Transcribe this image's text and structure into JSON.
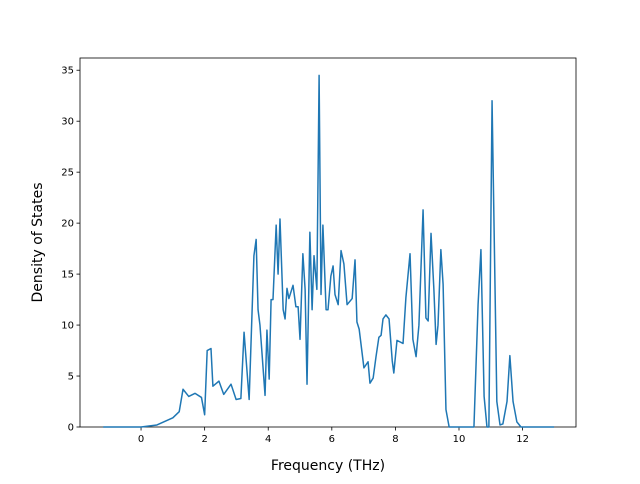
{
  "chart_data": {
    "type": "line",
    "x_label": "Frequency (THz)",
    "y_label": "Density of States",
    "series": [
      {
        "color": "#1f77b4",
        "x": [
          -1.19,
          0,
          0.5,
          1.0,
          1.2,
          1.32,
          1.5,
          1.7,
          1.9,
          2.0,
          2.08,
          2.2,
          2.26,
          2.45,
          2.6,
          2.83,
          2.99,
          3.14,
          3.24,
          3.4,
          3.55,
          3.62,
          3.68,
          3.74,
          3.9,
          3.96,
          4.03,
          4.09,
          4.15,
          4.25,
          4.31,
          4.37,
          4.47,
          4.53,
          4.59,
          4.65,
          4.78,
          4.87,
          4.94,
          5.0,
          5.09,
          5.16,
          5.22,
          5.31,
          5.38,
          5.44,
          5.53,
          5.6,
          5.66,
          5.72,
          5.82,
          5.88,
          5.97,
          6.04,
          6.1,
          6.2,
          6.29,
          6.38,
          6.48,
          6.64,
          6.73,
          6.79,
          6.86,
          7.01,
          7.14,
          7.2,
          7.3,
          7.39,
          7.48,
          7.55,
          7.61,
          7.7,
          7.8,
          7.9,
          7.95,
          8.05,
          8.24,
          8.33,
          8.46,
          8.55,
          8.65,
          8.74,
          8.87,
          8.96,
          9.03,
          9.12,
          9.21,
          9.28,
          9.34,
          9.43,
          9.5,
          9.59,
          9.69,
          10.47,
          10.6,
          10.69,
          10.79,
          10.88,
          10.94,
          11.04,
          11.19,
          11.29,
          11.38,
          11.51,
          11.6,
          11.7,
          11.82,
          11.95,
          12.99
        ],
        "values": [
          0,
          0,
          0.2,
          0.9,
          1.5,
          3.7,
          3.0,
          3.3,
          2.9,
          1.2,
          7.5,
          7.7,
          4.0,
          4.5,
          3.2,
          4.2,
          2.7,
          2.8,
          9.3,
          2.7,
          16.8,
          18.4,
          11.5,
          10.0,
          3.1,
          9.5,
          4.7,
          12.5,
          12.5,
          19.8,
          15.0,
          20.4,
          11.5,
          10.6,
          13.6,
          12.6,
          13.9,
          11.8,
          11.8,
          8.6,
          17.0,
          13.5,
          4.2,
          19.1,
          11.5,
          16.8,
          13.5,
          34.5,
          13.0,
          19.8,
          11.5,
          11.5,
          14.8,
          15.8,
          13.0,
          12.0,
          17.3,
          16.0,
          12.0,
          12.6,
          16.4,
          10.3,
          9.6,
          5.8,
          6.4,
          4.3,
          4.8,
          6.9,
          8.8,
          9.0,
          10.6,
          11.0,
          10.6,
          6.5,
          5.3,
          8.5,
          8.2,
          12.7,
          17.0,
          8.6,
          6.9,
          10.0,
          21.3,
          10.7,
          10.4,
          19.0,
          13.5,
          8.1,
          10.0,
          17.4,
          14.0,
          1.7,
          0,
          0,
          12.0,
          17.4,
          3.0,
          0,
          0,
          32.0,
          2.5,
          0.2,
          0.3,
          2.5,
          7.0,
          2.5,
          0.5,
          0,
          0
        ]
      }
    ],
    "xlim": [
      -1.92,
      13.68
    ],
    "ylim": [
      0,
      36.2
    ],
    "xticks": [
      0,
      2,
      4,
      6,
      8,
      10,
      12
    ],
    "yticks": [
      0,
      5,
      10,
      15,
      20,
      25,
      30,
      35
    ]
  }
}
